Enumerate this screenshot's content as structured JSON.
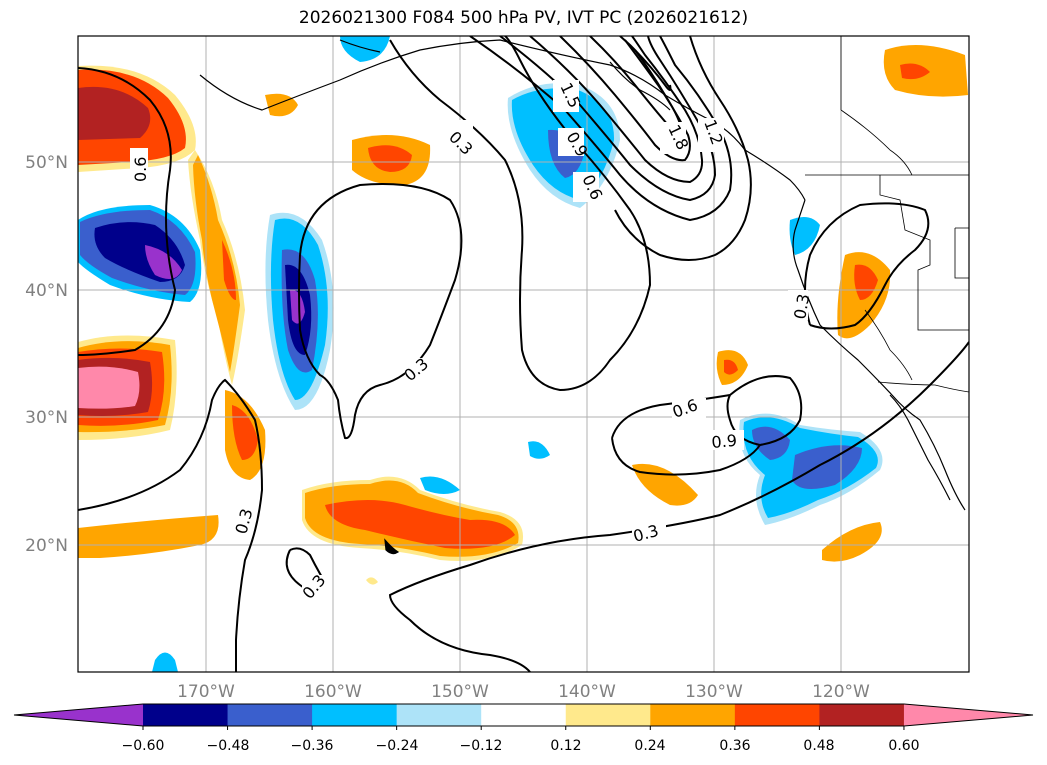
{
  "title": "2026021300 F084 500 hPa PV, IVT PC (2026021612)",
  "map": {
    "lat_ticks": [
      "50°N",
      "40°N",
      "30°N",
      "20°N"
    ],
    "lon_ticks": [
      "170°W",
      "160°W",
      "150°W",
      "140°W",
      "130°W",
      "120°W"
    ],
    "grid": true
  },
  "colorbar": {
    "ticks": [
      "−0.60",
      "−0.48",
      "−0.36",
      "−0.24",
      "−0.12",
      "0.12",
      "0.24",
      "0.36",
      "0.48",
      "0.60"
    ],
    "colors": [
      "#9932CC",
      "#00008B",
      "#3A5FCD",
      "#00BFFF",
      "#ADE3F8",
      "#FFFFFF",
      "#FFE98C",
      "#FFA500",
      "#FF4500",
      "#B22222",
      "#FF88AA"
    ]
  },
  "contour_labels": [
    "0.3",
    "0.3",
    "0.3",
    "0.3",
    "0.3",
    "0.6",
    "0.6",
    "0.9",
    "0.9",
    "0.6",
    "1.5",
    "1.8",
    "1.2",
    "0.3"
  ]
}
